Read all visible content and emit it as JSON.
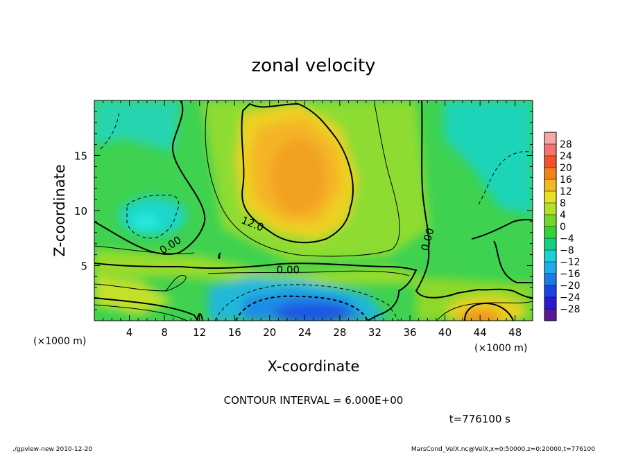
{
  "chart_data": {
    "type": "heatmap",
    "title": "zonal velocity",
    "xlabel": "X-coordinate",
    "ylabel": "Z-coordinate",
    "x_unit": "(×1000 m)",
    "y_unit": "(×1000 m)",
    "x_range": [
      0,
      50
    ],
    "y_range": [
      0,
      20
    ],
    "x_ticks": [
      "4",
      "8",
      "12",
      "16",
      "20",
      "24",
      "28",
      "32",
      "36",
      "40",
      "44",
      "48"
    ],
    "x_tick_values": [
      4,
      8,
      12,
      16,
      20,
      24,
      28,
      32,
      36,
      40,
      44,
      48
    ],
    "y_ticks": [
      "5",
      "10",
      "15"
    ],
    "y_tick_values": [
      5,
      10,
      15
    ],
    "contour_interval_text": "CONTOUR INTERVAL = 6.000E+00",
    "time_text": "t=776100 s",
    "contour_labels": [
      {
        "text": "12.0",
        "x": 17.9,
        "y": 8.5,
        "angle": 22
      },
      {
        "text": "0.00",
        "x": 8.9,
        "y": 6.6,
        "angle": -33
      },
      {
        "text": "0.00",
        "x": 22.1,
        "y": 4.3,
        "angle": 0
      },
      {
        "text": "0.00",
        "x": 38.4,
        "y": 7.3,
        "angle": -75
      }
    ],
    "colorbar": {
      "levels": [
        -28,
        -24,
        -20,
        -16,
        -12,
        -8,
        -4,
        0,
        4,
        8,
        12,
        16,
        20,
        24,
        28
      ],
      "labels": [
        "28",
        "24",
        "20",
        "16",
        "12",
        "8",
        "4",
        "0",
        "−4",
        "−8",
        "−12",
        "−16",
        "−20",
        "−24",
        "−28"
      ],
      "colors": [
        "#5a1a96",
        "#2a1ad2",
        "#1845e2",
        "#1c7ae6",
        "#20aaee",
        "#18d2d6",
        "#14d07e",
        "#34d234",
        "#70d82a",
        "#b4e02a",
        "#e6e224",
        "#f4b820",
        "#f0841a",
        "#f4522a",
        "#f47272",
        "#f6a8a8"
      ]
    },
    "features": [
      {
        "kind": "jet",
        "sign": "positive",
        "x": 24,
        "y": 13.5,
        "value": 16
      },
      {
        "kind": "jet",
        "sign": "positive",
        "x": 44.5,
        "y": 0.8,
        "value": 14
      },
      {
        "kind": "jet",
        "sign": "negative",
        "x": 25,
        "y": 1.0,
        "value": -20
      },
      {
        "kind": "jet",
        "sign": "negative",
        "x": 6,
        "y": 9.0,
        "value": -10
      },
      {
        "kind": "jet",
        "sign": "negative",
        "x": 46,
        "y": 17.0,
        "value": -8
      }
    ]
  },
  "footer": {
    "left": "./gpview-new   2010-12-20",
    "right": "MarsCond_VelX.nc@VelX,x=0:50000,z=0:20000,t=776100"
  }
}
